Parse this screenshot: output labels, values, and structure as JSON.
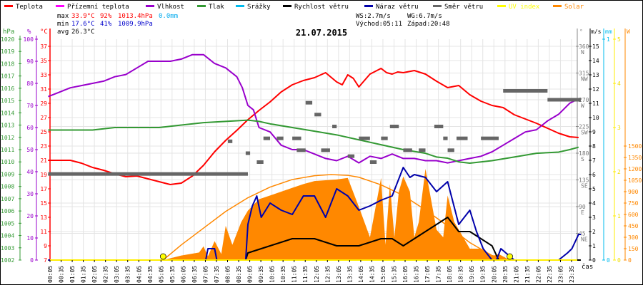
{
  "legend": [
    {
      "label": "Teplota",
      "color": "#ff0000"
    },
    {
      "label": "Přízemní teplota",
      "color": "#ff00ff"
    },
    {
      "label": "Vlhkost",
      "color": "#9900cc"
    },
    {
      "label": "Tlak",
      "color": "#339933"
    },
    {
      "label": "Srážky",
      "color": "#00bbee"
    },
    {
      "label": "Rychlost větru",
      "color": "#000000"
    },
    {
      "label": "Náraz větru",
      "color": "#0000aa"
    },
    {
      "label": "Směr větru",
      "color": "#666666"
    },
    {
      "label": "UV index",
      "color": "#ffff00"
    },
    {
      "label": "Solar",
      "color": "#ff8800"
    }
  ],
  "stats": {
    "max_label": "max",
    "max_temp": "33.9°C",
    "max_hum": "92%",
    "max_press": "1013.4hPa",
    "max_rain": "0.0mm",
    "min_label": "min",
    "min_temp": "17.6°C",
    "min_hum": "41%",
    "min_press": "1009.9hPa",
    "avg_label": "avg",
    "avg_temp": "26.3°C",
    "ws": "WS:2.7m/s",
    "wg": "WG:6.7m/s",
    "sunrise": "Východ:05:11",
    "sunset": "Západ:20:48"
  },
  "chart_data": {
    "type": "line",
    "title": "21.07.2015",
    "xlabel": "čas",
    "x_ticks": [
      "00:05",
      "00:35",
      "01:05",
      "01:35",
      "02:05",
      "02:35",
      "03:05",
      "03:35",
      "04:05",
      "04:35",
      "05:05",
      "05:35",
      "06:05",
      "06:35",
      "07:05",
      "07:35",
      "08:05",
      "08:35",
      "09:05",
      "09:35",
      "10:05",
      "10:35",
      "11:05",
      "11:35",
      "12:05",
      "12:35",
      "13:05",
      "13:35",
      "14:05",
      "14:35",
      "15:05",
      "15:35",
      "16:05",
      "16:35",
      "17:05",
      "17:35",
      "18:05",
      "18:35",
      "19:05",
      "19:35",
      "20:05",
      "20:35",
      "21:05",
      "21:35",
      "22:05",
      "22:35",
      "23:05",
      "23:35"
    ],
    "axes": {
      "pressure": {
        "unit": "hPa",
        "range": [
          1002,
          1020
        ],
        "ticks": [
          1002,
          1003,
          1004,
          1005,
          1006,
          1007,
          1008,
          1009,
          1010,
          1011,
          1012,
          1013,
          1014,
          1015,
          1016,
          1017,
          1018,
          1019,
          1020
        ]
      },
      "humidity": {
        "unit": "%",
        "range": [
          0,
          100
        ],
        "ticks": [
          0,
          10,
          20,
          30,
          40,
          50,
          60,
          70,
          80,
          90,
          100
        ]
      },
      "temperature": {
        "unit": "°C",
        "range": [
          7,
          37
        ],
        "ticks": [
          7,
          9,
          11,
          13,
          15,
          17,
          19,
          21,
          23,
          25,
          27,
          29,
          31,
          33,
          35,
          37
        ]
      },
      "direction": {
        "unit": "°",
        "range": [
          0,
          360
        ],
        "ticks": [
          {
            "v": 45,
            "l": "45",
            "d": "NE"
          },
          {
            "v": 90,
            "l": "90",
            "d": "E"
          },
          {
            "v": 135,
            "l": "135",
            "d": "SE"
          },
          {
            "v": 180,
            "l": "180",
            "d": "S"
          },
          {
            "v": 225,
            "l": "225",
            "d": "SW"
          },
          {
            "v": 270,
            "l": "270",
            "d": "W"
          },
          {
            "v": 315,
            "l": "315",
            "d": "NW"
          },
          {
            "v": 360,
            "l": "360",
            "d": "N"
          }
        ]
      },
      "wind": {
        "unit": "m/s",
        "range": [
          0,
          15
        ],
        "ticks": [
          0,
          1,
          2,
          3,
          4,
          5,
          6,
          7,
          8,
          9,
          10,
          11,
          12,
          13,
          14,
          15
        ]
      },
      "rain": {
        "unit": "mm",
        "range": [
          0,
          1
        ],
        "ticks": [
          0,
          1
        ]
      },
      "uv": {
        "unit": "",
        "range": [
          0,
          5
        ],
        "ticks": [
          0,
          1,
          2,
          3,
          4,
          5
        ]
      },
      "solar": {
        "unit": "W",
        "range": [
          0,
          1500
        ],
        "ticks": [
          0,
          150,
          300,
          450,
          600,
          750,
          900,
          1050,
          1200,
          1350,
          1500
        ]
      }
    },
    "series": [
      {
        "name": "Teplota",
        "axis": "temperature",
        "x": [
          0,
          1,
          1.5,
          2,
          2.5,
          3,
          3.5,
          4,
          4.5,
          5,
          5.5,
          6,
          6.5,
          7,
          7.5,
          8,
          8.5,
          9,
          9.5,
          10,
          10.5,
          11,
          11.5,
          12,
          12.5,
          13,
          13.25,
          13.5,
          13.75,
          14,
          14.5,
          15,
          15.25,
          15.5,
          15.75,
          16,
          16.5,
          17,
          17.5,
          18,
          18.5,
          19,
          19.5,
          20,
          20.5,
          21,
          21.5,
          22,
          22.5,
          23,
          23.5,
          23.9
        ],
        "y": [
          21,
          21,
          20.6,
          20,
          19.6,
          19.1,
          18.7,
          18.8,
          18.4,
          18,
          17.6,
          17.8,
          18.8,
          20.3,
          22.2,
          23.8,
          25.2,
          26.7,
          28,
          29.2,
          30.6,
          31.6,
          32.2,
          32.6,
          33.3,
          32,
          31.6,
          33,
          32.5,
          31.3,
          33.1,
          33.9,
          33.3,
          33.1,
          33.4,
          33.3,
          33.6,
          33.1,
          32.1,
          31.2,
          31.5,
          30.2,
          29.3,
          28.7,
          28.4,
          27.4,
          26.8,
          26.2,
          25.5,
          24.8,
          24.3,
          24.2
        ]
      },
      {
        "name": "Vlhkost",
        "axis": "humidity",
        "x": [
          0,
          0.5,
          1,
          1.5,
          2,
          2.5,
          3,
          3.5,
          4,
          4.5,
          5,
          5.5,
          6,
          6.5,
          7,
          7.5,
          8,
          8.5,
          8.75,
          9,
          9.25,
          9.5,
          10,
          10.5,
          11,
          11.5,
          12,
          12.5,
          13,
          13.5,
          14,
          14.5,
          15,
          15.5,
          16,
          16.5,
          17,
          17.5,
          18,
          18.5,
          19,
          19.5,
          20,
          20.5,
          21,
          21.5,
          22,
          22.5,
          23,
          23.5,
          23.9
        ],
        "y": [
          74,
          76,
          78,
          79,
          80,
          81,
          83,
          84,
          87,
          90,
          90,
          90,
          91,
          93,
          93,
          89,
          87,
          83,
          78,
          70,
          68,
          60,
          58,
          52,
          50,
          50,
          48,
          46,
          45,
          47,
          44,
          47,
          46,
          48,
          46,
          46,
          45,
          45,
          44,
          45,
          46,
          47,
          49,
          52,
          55,
          58,
          59,
          63,
          66,
          71,
          73
        ]
      },
      {
        "name": "Tlak",
        "axis": "pressure",
        "x": [
          0,
          1,
          2,
          3,
          4,
          5,
          6,
          7,
          8,
          9,
          9.5,
          10,
          11,
          12,
          13,
          14,
          15,
          16,
          17,
          17.5,
          18,
          18.5,
          19,
          20,
          21,
          22,
          23,
          23.5,
          23.9
        ],
        "y": [
          1012.6,
          1012.6,
          1012.6,
          1012.8,
          1012.8,
          1012.8,
          1013.0,
          1013.2,
          1013.3,
          1013.4,
          1013.3,
          1013.1,
          1012.8,
          1012.5,
          1012.2,
          1011.8,
          1011.4,
          1011.0,
          1010.7,
          1010.4,
          1010.3,
          1010.0,
          1009.9,
          1010.1,
          1010.4,
          1010.7,
          1010.8,
          1011.0,
          1011.2
        ]
      },
      {
        "name": "Solar",
        "axis": "solar",
        "type": "area",
        "x": [
          5.18,
          6,
          6.8,
          7,
          7.2,
          7.5,
          7.8,
          8,
          8.3,
          8.7,
          9,
          9.5,
          10,
          10.5,
          11,
          11.5,
          12,
          12.5,
          13,
          13.5,
          14,
          14.5,
          15,
          15.2,
          15.4,
          15.6,
          15.8,
          16,
          16.3,
          16.5,
          16.7,
          17,
          17.5,
          17.8,
          18,
          18.3,
          18.7,
          19,
          19.5,
          20,
          20.3,
          20.8
        ],
        "y": [
          0,
          60,
          100,
          180,
          50,
          250,
          80,
          450,
          200,
          500,
          650,
          800,
          850,
          900,
          950,
          1000,
          1040,
          1050,
          1060,
          1080,
          700,
          300,
          1080,
          200,
          1000,
          300,
          900,
          1100,
          900,
          300,
          500,
          1200,
          400,
          300,
          850,
          500,
          300,
          150,
          150,
          50,
          80,
          0
        ]
      },
      {
        "name": "Solar max",
        "axis": "solar",
        "type": "line",
        "x": [
          5.18,
          6,
          7,
          8,
          9,
          10,
          11,
          12,
          12.75,
          13.5,
          14,
          15,
          16,
          17,
          18,
          19,
          20,
          20.8
        ],
        "y": [
          0,
          200,
          420,
          640,
          820,
          960,
          1060,
          1110,
          1125,
          1115,
          1090,
          990,
          850,
          660,
          450,
          230,
          60,
          0
        ]
      },
      {
        "name": "Rychlost větru",
        "axis": "wind",
        "x": [
          0,
          8.9,
          9.0,
          10,
          11,
          12,
          13,
          14,
          15,
          15.5,
          16,
          16.5,
          17,
          17.5,
          18,
          18.5,
          19,
          19.5,
          20,
          20.3,
          20.5,
          24
        ],
        "y": [
          0,
          0,
          0.5,
          1.0,
          1.5,
          1.5,
          1.0,
          1.0,
          1.5,
          1.5,
          1.0,
          1.5,
          2.0,
          2.5,
          3.0,
          2.0,
          2.0,
          1.5,
          1.0,
          0,
          0,
          0
        ]
      },
      {
        "name": "Náraz větru",
        "axis": "wind",
        "x": [
          0,
          7.1,
          7.2,
          7.5,
          7.6,
          8.9,
          9.0,
          9.2,
          9.4,
          9.6,
          10,
          10.5,
          11,
          11.5,
          12,
          12.5,
          13,
          13.5,
          14,
          14.5,
          15,
          15.5,
          16,
          16.3,
          16.5,
          17,
          17.5,
          18,
          18.5,
          19,
          19.3,
          19.6,
          20,
          20.2,
          20.4,
          21,
          21.2,
          21.4,
          23,
          23.4,
          23.6,
          23.9,
          24
        ],
        "y": [
          0,
          0,
          0.8,
          0.8,
          0,
          0,
          2.5,
          3.8,
          4.5,
          3.0,
          4.0,
          3.5,
          3.2,
          4.5,
          4.5,
          3.0,
          5.0,
          4.5,
          3.5,
          3.8,
          4.2,
          4.5,
          6.5,
          5.8,
          6.0,
          5.8,
          4.8,
          5.5,
          2.5,
          3.5,
          2.0,
          0.8,
          0,
          0,
          0.8,
          0,
          0,
          0,
          0,
          0.5,
          0.8,
          1.8,
          1.8
        ]
      },
      {
        "name": "Směr větru",
        "axis": "direction",
        "type": "segments",
        "segments": [
          [
            0,
            9.0,
            145
          ],
          [
            8.1,
            8.3,
            200
          ],
          [
            8.9,
            9.1,
            180
          ],
          [
            9.4,
            9.7,
            165
          ],
          [
            9.7,
            10.0,
            205
          ],
          [
            10.3,
            10.6,
            205
          ],
          [
            11.0,
            11.4,
            205
          ],
          [
            11.2,
            11.6,
            185
          ],
          [
            11.6,
            11.9,
            265
          ],
          [
            12.0,
            12.3,
            245
          ],
          [
            12.3,
            12.7,
            185
          ],
          [
            12.8,
            13.0,
            225
          ],
          [
            13.5,
            13.8,
            175
          ],
          [
            14.0,
            14.5,
            205
          ],
          [
            14.5,
            14.8,
            165
          ],
          [
            15.0,
            15.3,
            205
          ],
          [
            15.4,
            15.8,
            225
          ],
          [
            16.0,
            16.4,
            185
          ],
          [
            16.7,
            17.0,
            185
          ],
          [
            17.4,
            17.8,
            225
          ],
          [
            17.8,
            18.0,
            205
          ],
          [
            18.0,
            18.3,
            185
          ],
          [
            18.4,
            18.9,
            205
          ],
          [
            19.5,
            20.3,
            205
          ],
          [
            20.5,
            22.5,
            285
          ],
          [
            22.5,
            24,
            270
          ]
        ]
      }
    ]
  }
}
